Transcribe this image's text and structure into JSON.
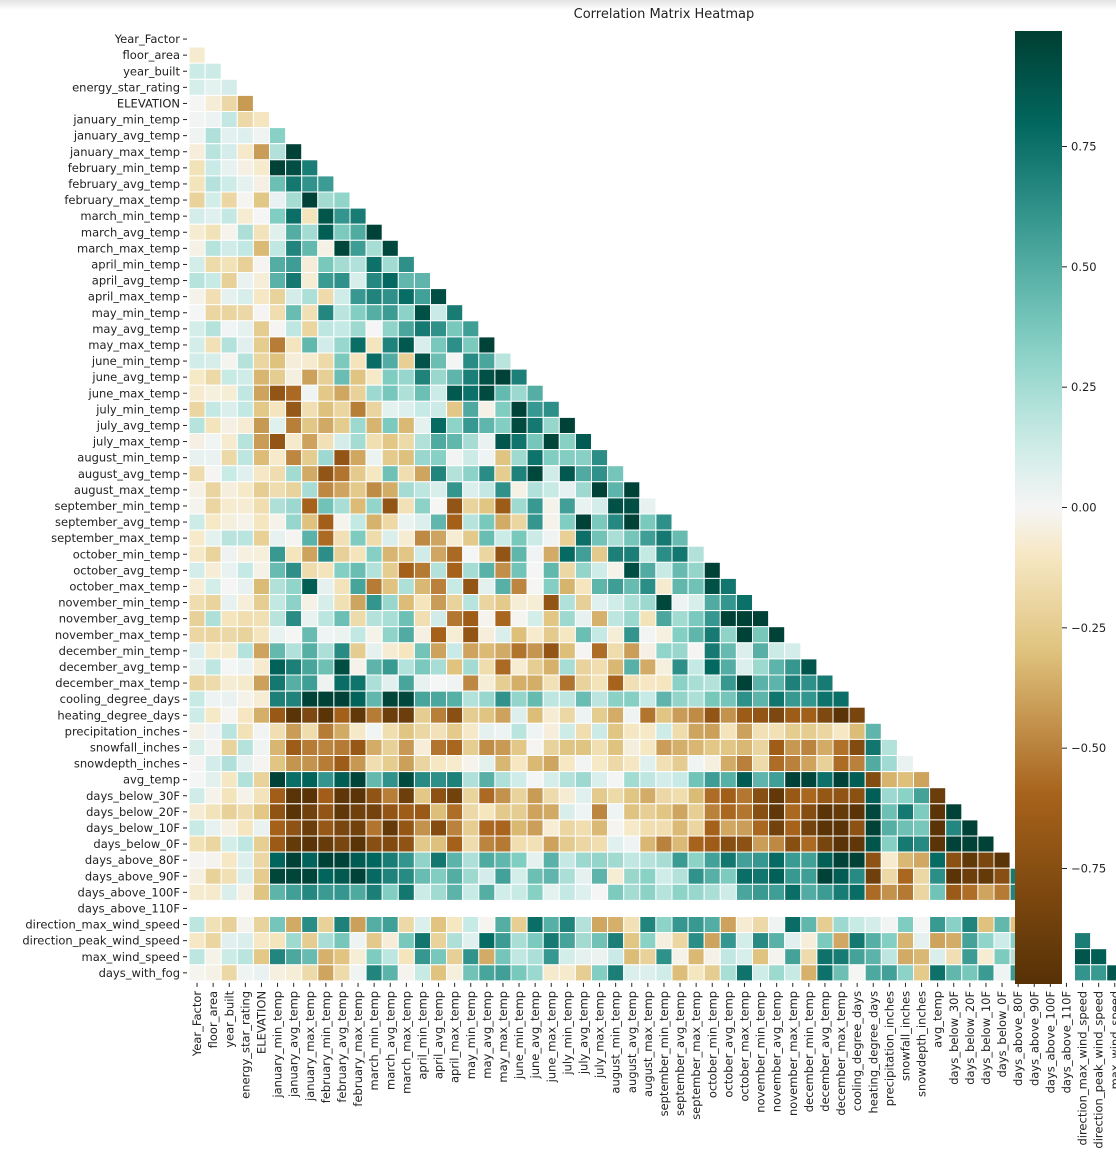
{
  "chart_data": {
    "type": "heatmap",
    "title": "Correlation Matrix Heatmap",
    "mask": "upper-triangle-including-diagonal",
    "variables": [
      "Year_Factor",
      "floor_area",
      "year_built",
      "energy_star_rating",
      "ELEVATION",
      "january_min_temp",
      "january_avg_temp",
      "january_max_temp",
      "february_min_temp",
      "february_avg_temp",
      "february_max_temp",
      "march_min_temp",
      "march_avg_temp",
      "march_max_temp",
      "april_min_temp",
      "april_avg_temp",
      "april_max_temp",
      "may_min_temp",
      "may_avg_temp",
      "may_max_temp",
      "june_min_temp",
      "june_avg_temp",
      "june_max_temp",
      "july_min_temp",
      "july_avg_temp",
      "july_max_temp",
      "august_min_temp",
      "august_avg_temp",
      "august_max_temp",
      "september_min_temp",
      "september_avg_temp",
      "september_max_temp",
      "october_min_temp",
      "october_avg_temp",
      "october_max_temp",
      "november_min_temp",
      "november_avg_temp",
      "november_max_temp",
      "december_min_temp",
      "december_avg_temp",
      "december_max_temp",
      "cooling_degree_days",
      "heating_degree_days",
      "precipitation_inches",
      "snowfall_inches",
      "snowdepth_inches",
      "avg_temp",
      "days_below_30F",
      "days_below_20F",
      "days_below_10F",
      "days_below_0F",
      "days_above_80F",
      "days_above_90F",
      "days_above_100F",
      "days_above_110F",
      "direction_max_wind_speed",
      "direction_peak_wind_speed",
      "max_wind_speed",
      "days_with_fog"
    ],
    "empty_variables": [
      "days_above_110F"
    ],
    "colormap": "BrBG",
    "colormap_stops": [
      {
        "v": -1.0,
        "c": "#543005"
      },
      {
        "v": -0.6,
        "c": "#a6611a"
      },
      {
        "v": -0.3,
        "c": "#dfc27d"
      },
      {
        "v": -0.1,
        "c": "#f6e8c3"
      },
      {
        "v": 0.0,
        "c": "#f5f5f5"
      },
      {
        "v": 0.15,
        "c": "#c7eae5"
      },
      {
        "v": 0.35,
        "c": "#80cdc1"
      },
      {
        "v": 0.6,
        "c": "#35978f"
      },
      {
        "v": 0.8,
        "c": "#01665e"
      },
      {
        "v": 1.0,
        "c": "#003c30"
      }
    ],
    "value_range": [
      -1,
      1
    ],
    "colorbar_ticks": [
      {
        "value": 0.75,
        "label": "0.75"
      },
      {
        "value": 0.5,
        "label": "0.50"
      },
      {
        "value": 0.25,
        "label": "0.25"
      },
      {
        "value": 0.0,
        "label": "0.00"
      },
      {
        "value": -0.25,
        "label": "−0.25"
      },
      {
        "value": -0.5,
        "label": "−0.50"
      },
      {
        "value": -0.75,
        "label": "−0.75"
      }
    ],
    "colorbar_range": [
      -0.99,
      0.99
    ],
    "mask_color": "#ffffff",
    "cell_separator_color": "#ffffff"
  }
}
